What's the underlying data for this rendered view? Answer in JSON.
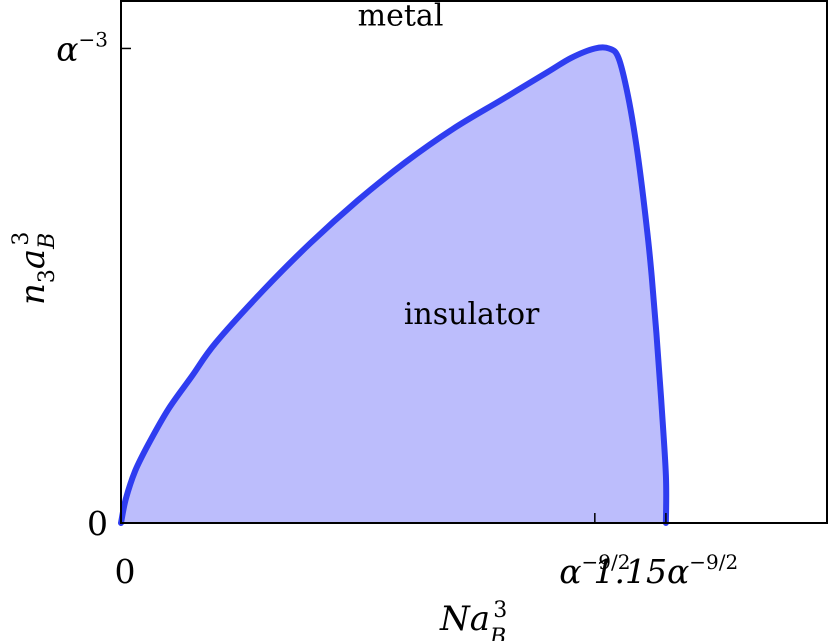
{
  "chart_data": {
    "type": "area",
    "title": "",
    "xlabel": {
      "base": "Na",
      "sub": "B",
      "sup": "3"
    },
    "ylabel": {
      "base": "n",
      "sub1": "3",
      "mid": "a",
      "sub2": "B",
      "sup": "3"
    },
    "xlim": [
      0,
      1.49
    ],
    "ylim": [
      0,
      1.1
    ],
    "x_ticks": [
      {
        "x": 0,
        "label": "0"
      },
      {
        "x": 1.0,
        "label": {
          "prefix": "α",
          "exponent": "−9/2"
        }
      },
      {
        "x": 1.15,
        "label": {
          "prefix": "1.15α",
          "exponent": "−9/2"
        }
      }
    ],
    "y_ticks": [
      {
        "y": 0,
        "label": "0"
      },
      {
        "y": 1.0,
        "label": {
          "prefix": "α",
          "exponent": "−3"
        }
      }
    ],
    "grid": false,
    "series": [
      {
        "fill_color": "#bcbdfc",
        "line_color": "#2f3df0",
        "x": [
          0,
          0.01,
          0.03,
          0.06,
          0.1,
          0.15,
          0.2,
          0.3,
          0.4,
          0.5,
          0.6,
          0.7,
          0.8,
          0.9,
          0.95,
          1.0,
          1.03,
          1.05,
          1.07,
          1.09,
          1.11,
          1.12,
          1.13,
          1.14,
          1.15,
          1.15
        ],
        "y": [
          0,
          0.05,
          0.11,
          0.17,
          0.24,
          0.31,
          0.38,
          0.49,
          0.59,
          0.68,
          0.76,
          0.83,
          0.89,
          0.95,
          0.98,
          1.0,
          1.0,
          0.98,
          0.9,
          0.78,
          0.62,
          0.52,
          0.4,
          0.26,
          0.1,
          0
        ]
      }
    ],
    "annotations": [
      {
        "text": "metal",
        "x": 0.59,
        "y": 1.07
      },
      {
        "text": "insulator",
        "x": 0.74,
        "y": 0.44
      }
    ]
  }
}
